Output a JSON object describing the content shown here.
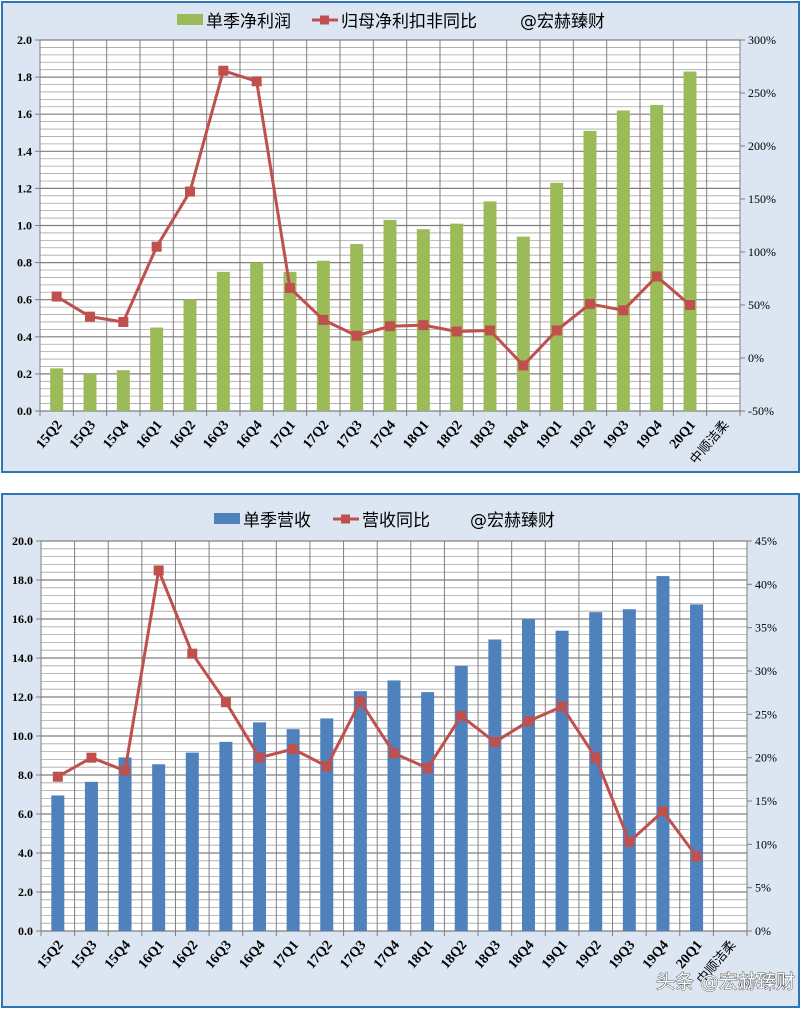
{
  "chart_data": [
    {
      "type": "bar+line",
      "title": "",
      "legend": [
        "单季净利润",
        "归母净利扣非同比",
        "@宏赫臻财"
      ],
      "legend_position": "top",
      "categories": [
        "15Q2",
        "15Q3",
        "15Q4",
        "16Q1",
        "16Q2",
        "16Q3",
        "16Q4",
        "17Q1",
        "17Q2",
        "17Q3",
        "17Q4",
        "18Q1",
        "18Q2",
        "18Q3",
        "18Q4",
        "19Q1",
        "19Q2",
        "19Q3",
        "19Q4",
        "20Q1",
        "中顺洁柔"
      ],
      "series": [
        {
          "name": "单季净利润",
          "type": "bar",
          "axis": "left",
          "color": "#9bbb59",
          "values": [
            0.23,
            0.2,
            0.22,
            0.45,
            0.6,
            0.75,
            0.8,
            0.75,
            0.81,
            0.9,
            1.03,
            0.98,
            1.01,
            1.13,
            0.94,
            1.23,
            1.51,
            1.62,
            1.65,
            1.83,
            null
          ]
        },
        {
          "name": "归母净利扣非同比",
          "type": "line",
          "axis": "right",
          "color": "#c0504d",
          "unit": "%",
          "values": [
            58,
            39,
            34,
            105,
            157,
            271,
            261,
            66,
            36,
            21,
            30,
            31,
            25,
            26,
            -7,
            26,
            51,
            45,
            77,
            50,
            null
          ]
        }
      ],
      "left_axis": {
        "ylim": [
          0.0,
          2.0
        ],
        "ticks": [
          "0.0",
          "0.2",
          "0.4",
          "0.6",
          "0.8",
          "1.0",
          "1.2",
          "1.4",
          "1.6",
          "1.8",
          "2.0"
        ]
      },
      "right_axis": {
        "ylim": [
          -50,
          300
        ],
        "ticks": [
          "-50%",
          "0%",
          "50%",
          "100%",
          "150%",
          "200%",
          "250%",
          "300%"
        ]
      },
      "xlabel": "",
      "ylabel": "",
      "grid": true
    },
    {
      "type": "bar+line",
      "title": "",
      "legend": [
        "单季营收",
        "营收同比",
        "@宏赫臻财"
      ],
      "legend_position": "top",
      "categories": [
        "15Q2",
        "15Q3",
        "15Q4",
        "16Q1",
        "16Q2",
        "16Q3",
        "16Q4",
        "17Q1",
        "17Q2",
        "17Q3",
        "17Q4",
        "18Q1",
        "18Q2",
        "18Q3",
        "18Q4",
        "19Q1",
        "19Q2",
        "19Q3",
        "19Q4",
        "20Q1",
        "中顺洁柔"
      ],
      "series": [
        {
          "name": "单季营收",
          "type": "bar",
          "axis": "left",
          "color": "#4f81bd",
          "values": [
            6.95,
            7.65,
            8.9,
            8.55,
            9.15,
            9.7,
            10.7,
            10.35,
            10.9,
            12.3,
            12.85,
            12.25,
            13.6,
            14.95,
            16.0,
            15.4,
            16.35,
            16.5,
            18.2,
            16.75,
            null
          ]
        },
        {
          "name": "营收同比",
          "type": "line",
          "axis": "right",
          "color": "#c0504d",
          "unit": "%",
          "values": [
            17.8,
            20.0,
            18.5,
            41.6,
            32.0,
            26.4,
            20.0,
            21.0,
            19.0,
            26.5,
            20.5,
            18.8,
            24.8,
            21.8,
            24.2,
            25.9,
            20.0,
            10.3,
            13.8,
            8.6,
            null
          ]
        }
      ],
      "left_axis": {
        "ylim": [
          0.0,
          20.0
        ],
        "ticks": [
          "0.0",
          "2.0",
          "4.0",
          "6.0",
          "8.0",
          "10.0",
          "12.0",
          "14.0",
          "16.0",
          "18.0",
          "20.0"
        ]
      },
      "right_axis": {
        "ylim": [
          0,
          45
        ],
        "ticks": [
          "0%",
          "5%",
          "10%",
          "15%",
          "20%",
          "25%",
          "30%",
          "35%",
          "40%",
          "45%"
        ]
      },
      "xlabel": "",
      "ylabel": "",
      "grid": true
    }
  ],
  "panels": {
    "profit": {
      "legend": {
        "bar_label": "单季净利润",
        "line_label": "归母净利扣非同比",
        "credit": "@宏赫臻财"
      }
    },
    "revenue": {
      "legend": {
        "bar_label": "单季营收",
        "line_label": "营收同比",
        "credit": "@宏赫臻财"
      }
    }
  },
  "watermark": "头条 @宏赫臻财",
  "colors": {
    "panel_bg": "#dce6f2",
    "panel_border": "#2e75b6",
    "grid": "#7f7f7f",
    "green_bar": "#9bbb59",
    "blue_bar": "#4f81bd",
    "red_line": "#c0504d"
  }
}
